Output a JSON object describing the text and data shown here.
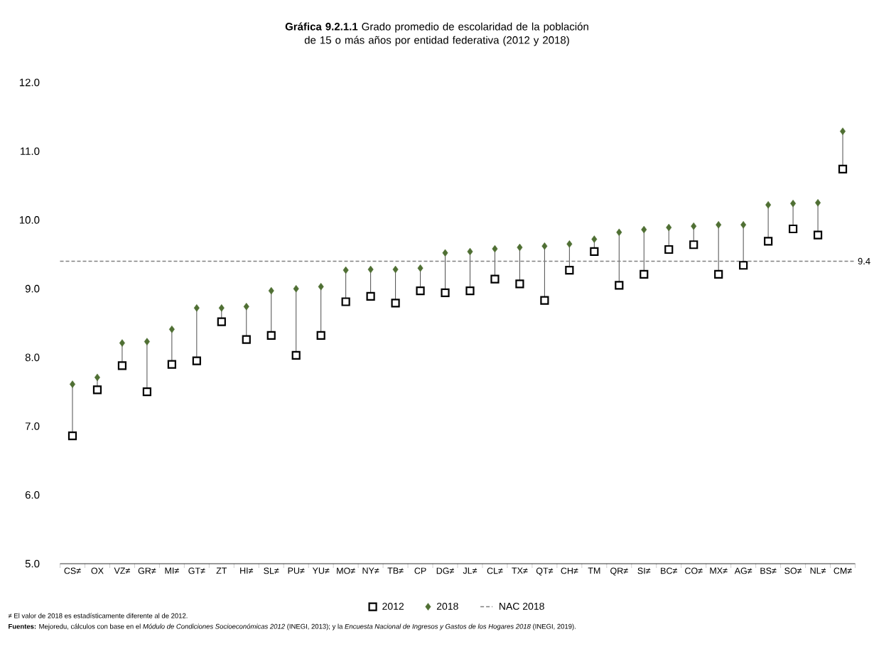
{
  "chart_data": {
    "type": "scatter",
    "title": "**Gráfica 9.2.1.1** Grado promedio de escolaridad de la población de 15 o más años por entidad federativa (2012 y 2018)",
    "categories": [
      "CS≠",
      "OX",
      "VZ≠",
      "GR≠",
      "MI≠",
      "GT≠",
      "ZT",
      "HI≠",
      "SL≠",
      "PU≠",
      "YU≠",
      "MO≠",
      "NY≠",
      "TB≠",
      "CP",
      "DG≠",
      "JL≠",
      "CL≠",
      "TX≠",
      "QT≠",
      "CH≠",
      "TM",
      "QR≠",
      "SI≠",
      "BC≠",
      "CO≠",
      "MX≠",
      "AG≠",
      "BS≠",
      "SO≠",
      "NL≠",
      "CM≠"
    ],
    "series": [
      {
        "name": "2012",
        "color": "#000000",
        "marker": "square",
        "values": [
          6.86,
          7.53,
          7.88,
          7.5,
          7.9,
          7.95,
          8.52,
          8.26,
          8.32,
          8.03,
          8.32,
          8.81,
          8.89,
          8.79,
          8.97,
          8.94,
          8.97,
          9.14,
          9.07,
          8.83,
          9.27,
          9.54,
          9.05,
          9.21,
          9.57,
          9.64,
          9.21,
          9.34,
          9.69,
          9.87,
          9.78,
          10.74
        ]
      },
      {
        "name": "2018",
        "color": "#4f6f33",
        "marker": "diamond",
        "values": [
          7.61,
          7.71,
          8.21,
          8.23,
          8.41,
          8.72,
          8.72,
          8.74,
          8.97,
          9.0,
          9.03,
          9.27,
          9.28,
          9.28,
          9.3,
          9.52,
          9.54,
          9.58,
          9.6,
          9.62,
          9.65,
          9.72,
          9.82,
          9.86,
          9.89,
          9.91,
          9.93,
          9.93,
          10.22,
          10.24,
          10.25,
          11.29
        ]
      }
    ],
    "ylim": [
      5,
      12
    ],
    "yticks": [
      {
        "value": 5,
        "label": "5.0"
      },
      {
        "value": 6,
        "label": "6.0"
      },
      {
        "value": 7,
        "label": "7.0"
      },
      {
        "value": 8,
        "label": "8.0"
      },
      {
        "value": 9,
        "label": "9.0"
      },
      {
        "value": 10,
        "label": "10.0"
      },
      {
        "value": 11,
        "label": "11.0"
      },
      {
        "value": 12,
        "label": "12.0"
      }
    ],
    "ref_lines": [
      {
        "axis": "y",
        "value": 9.4,
        "label": "NAC 2018",
        "color": "#7f7f7f",
        "line_style": "dashed"
      }
    ],
    "legend": "bottom",
    "annotations": [
      "9.4",
      "≠ El valor de 2018 es estadísticamente diferente al de 2012.",
      "**Fuentes:** Mejoredu, cálculos con base en el *Módulo de Condiciones Socioeconómicas 2012* (INEGI, 2013); y la *Encuesta Nacional de Ingresos y Gastos de los Hogares 2018* (INEGI, 2019)."
    ]
  }
}
